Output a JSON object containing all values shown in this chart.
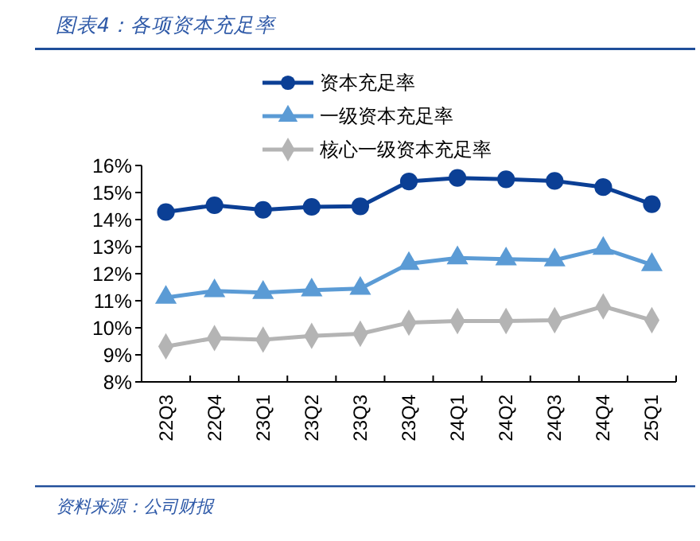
{
  "chart_data": {
    "type": "line",
    "title": "图表4：各项资本充足率",
    "annotations": [
      "资料来源：公司财报"
    ],
    "categories": [
      "22Q3",
      "22Q4",
      "23Q1",
      "23Q2",
      "23Q3",
      "23Q4",
      "24Q1",
      "24Q2",
      "24Q3",
      "24Q4",
      "25Q1"
    ],
    "series": [
      {
        "name": "资本充足率",
        "color": "#0b3f95",
        "marker": "circle",
        "values": [
          14.28,
          14.53,
          14.36,
          14.47,
          14.49,
          15.41,
          15.54,
          15.49,
          15.43,
          15.2,
          14.57
        ]
      },
      {
        "name": "一级资本充足率",
        "color": "#5b9bd5",
        "marker": "triangle",
        "values": [
          11.12,
          11.36,
          11.3,
          11.39,
          11.45,
          12.37,
          12.58,
          12.54,
          12.5,
          12.93,
          12.33
        ]
      },
      {
        "name": "核心一级资本充足率",
        "color": "#b4b4b4",
        "marker": "diamond",
        "values": [
          9.31,
          9.62,
          9.56,
          9.7,
          9.78,
          10.19,
          10.25,
          10.25,
          10.28,
          10.79,
          10.28
        ]
      }
    ],
    "ylim": [
      8,
      16
    ],
    "yticks": [
      {
        "value": 8,
        "label": "8%"
      },
      {
        "value": 9,
        "label": "9%"
      },
      {
        "value": 10,
        "label": "10%"
      },
      {
        "value": 11,
        "label": "11%"
      },
      {
        "value": 12,
        "label": "12%"
      },
      {
        "value": 13,
        "label": "13%"
      },
      {
        "value": 14,
        "label": "14%"
      },
      {
        "value": 15,
        "label": "15%"
      },
      {
        "value": 16,
        "label": "16%"
      }
    ],
    "legend": "top",
    "grid": false
  }
}
